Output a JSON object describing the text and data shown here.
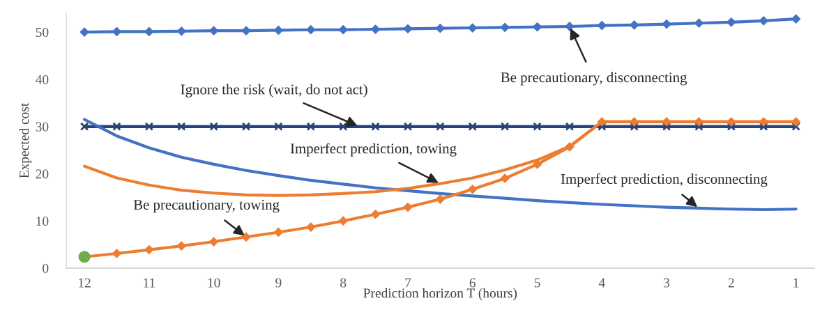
{
  "chart_data": {
    "type": "line",
    "xlabel": "Prediction horizon T (hours)",
    "ylabel": "Expected cost",
    "x": [
      12,
      11.5,
      11,
      10.5,
      10,
      9.5,
      9,
      8.5,
      8,
      7.5,
      7,
      6.5,
      6,
      5.5,
      5,
      4.5,
      4,
      3.5,
      3,
      2.5,
      2,
      1.5,
      1
    ],
    "xlim": [
      12.28,
      0.72
    ],
    "xticks": [
      12,
      11,
      10,
      9,
      8,
      7,
      6,
      5,
      4,
      3,
      2,
      1
    ],
    "ylim": [
      0,
      54
    ],
    "yticks": [
      0,
      10,
      20,
      30,
      40,
      50
    ],
    "grid": false,
    "series": [
      {
        "color": "#4472c4",
        "marker": "diamond",
        "values": [
          50.0,
          50.1,
          50.1,
          50.2,
          50.3,
          50.3,
          50.4,
          50.5,
          50.5,
          50.6,
          50.7,
          50.8,
          50.9,
          51.0,
          51.1,
          51.2,
          51.4,
          51.5,
          51.7,
          51.9,
          52.1,
          52.4,
          52.8
        ]
      },
      {
        "color": "#264478",
        "marker": "cross",
        "values": [
          30,
          30,
          30,
          30,
          30,
          30,
          30,
          30,
          30,
          30,
          30,
          30,
          30,
          30,
          30,
          30,
          30,
          30,
          30,
          30,
          30,
          30,
          30
        ]
      },
      {
        "color": "#4472c4",
        "marker": "none",
        "values": [
          31.5,
          28.0,
          25.5,
          23.5,
          22.0,
          20.7,
          19.6,
          18.6,
          17.8,
          17.0,
          16.4,
          15.8,
          15.3,
          14.8,
          14.3,
          13.9,
          13.5,
          13.2,
          12.9,
          12.7,
          12.5,
          12.4,
          12.5
        ]
      },
      {
        "color": "#ed7d31",
        "marker": "none",
        "values": [
          21.6,
          19.1,
          17.6,
          16.5,
          15.9,
          15.5,
          15.4,
          15.5,
          15.8,
          16.2,
          16.9,
          17.9,
          19.1,
          20.8,
          22.9,
          25.8,
          31.0,
          31.0,
          31.0,
          31.0,
          31.0,
          31.0,
          31.0
        ]
      },
      {
        "color": "#ed7d31",
        "marker": "diamond",
        "values": [
          2.4,
          3.1,
          3.9,
          4.7,
          5.6,
          6.6,
          7.6,
          8.7,
          10.0,
          11.4,
          12.9,
          14.6,
          16.7,
          19.0,
          22.0,
          25.7,
          31.0,
          31.0,
          31.0,
          31.0,
          31.0,
          31.0,
          31.0
        ]
      },
      {
        "type": "scatter",
        "color": "#70ad47",
        "marker": "circle",
        "x": [
          12
        ],
        "values": [
          2.4
        ]
      }
    ],
    "annotations": [
      {
        "text": "Be precautionary, disconnecting",
        "x": 4.5,
        "y": 51.2
      },
      {
        "text": "Ignore the risk (wait, do not act)",
        "x": 7.75,
        "y": 30
      },
      {
        "text": "Imperfect prediction, towing",
        "x": 6.5,
        "y": 17.9
      },
      {
        "text": "Imperfect prediction, disconnecting",
        "x": 2.5,
        "y": 12.7
      },
      {
        "text": "Be precautionary, towing",
        "x": 9.5,
        "y": 6.6
      }
    ]
  }
}
